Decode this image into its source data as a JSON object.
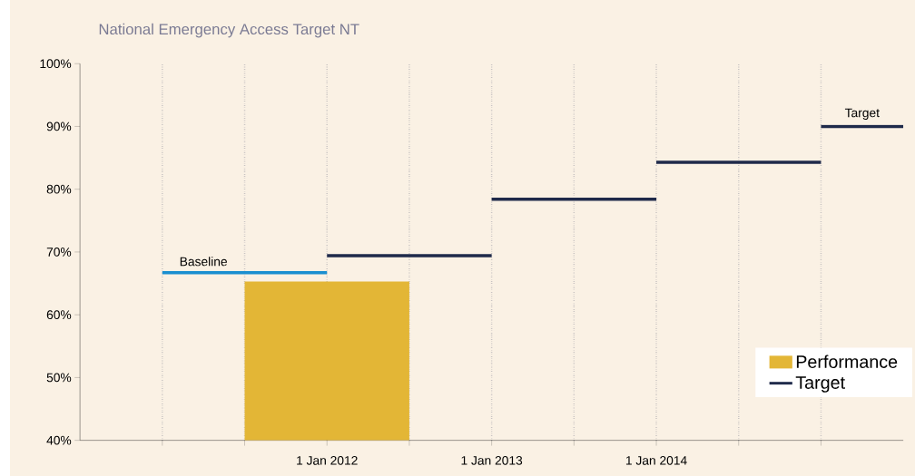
{
  "chart_data": {
    "type": "line",
    "title": "National Emergency Access Target NT",
    "xlim": [
      "2010-07",
      "2015-07"
    ],
    "xticks": [
      {
        "value": "2011-01",
        "label": null
      },
      {
        "value": "2011-07",
        "label": null
      },
      {
        "value": "2012-01",
        "label": "1 Jan 2012"
      },
      {
        "value": "2012-07",
        "label": null
      },
      {
        "value": "2013-01",
        "label": "1 Jan 2013"
      },
      {
        "value": "2013-07",
        "label": null
      },
      {
        "value": "2014-01",
        "label": "1 Jan 2014"
      },
      {
        "value": "2014-07",
        "label": null
      },
      {
        "value": "2015-01",
        "label": null
      }
    ],
    "ylim": [
      40,
      100
    ],
    "yticks": [
      {
        "value": 40,
        "label": "40%"
      },
      {
        "value": 50,
        "label": "50%"
      },
      {
        "value": 60,
        "label": "60%"
      },
      {
        "value": 70,
        "label": "70%"
      },
      {
        "value": 80,
        "label": "80%"
      },
      {
        "value": 90,
        "label": "90%"
      },
      {
        "value": 100,
        "label": "100%"
      }
    ],
    "grid": "x",
    "legend": "bottom right",
    "line_style": "solid",
    "series": [
      {
        "name": "Performance",
        "type": "bar",
        "color": "#e3b636",
        "x": [
          "2012-01"
        ],
        "values": [
          65.3
        ]
      },
      {
        "color": "#1a8fd0",
        "x": [
          "2011-01",
          "2012-01"
        ],
        "values": [
          66.7,
          66.7
        ]
      },
      {
        "name": "Target",
        "color": "#1f2a4a",
        "x": [
          "2012-01",
          "2013-01",
          null,
          "2013-01",
          "2014-01",
          null,
          "2014-01",
          "2015-01",
          null,
          "2015-01",
          "2015-07"
        ],
        "values": [
          69.4,
          69.4,
          null,
          78.4,
          78.4,
          null,
          84.3,
          84.3,
          null,
          90,
          90
        ]
      }
    ],
    "annotations": [
      {
        "text": "Baseline",
        "x": "2011-04",
        "y": 66.7
      },
      {
        "text": "Target",
        "x": "2015-04",
        "y": 90
      }
    ]
  }
}
